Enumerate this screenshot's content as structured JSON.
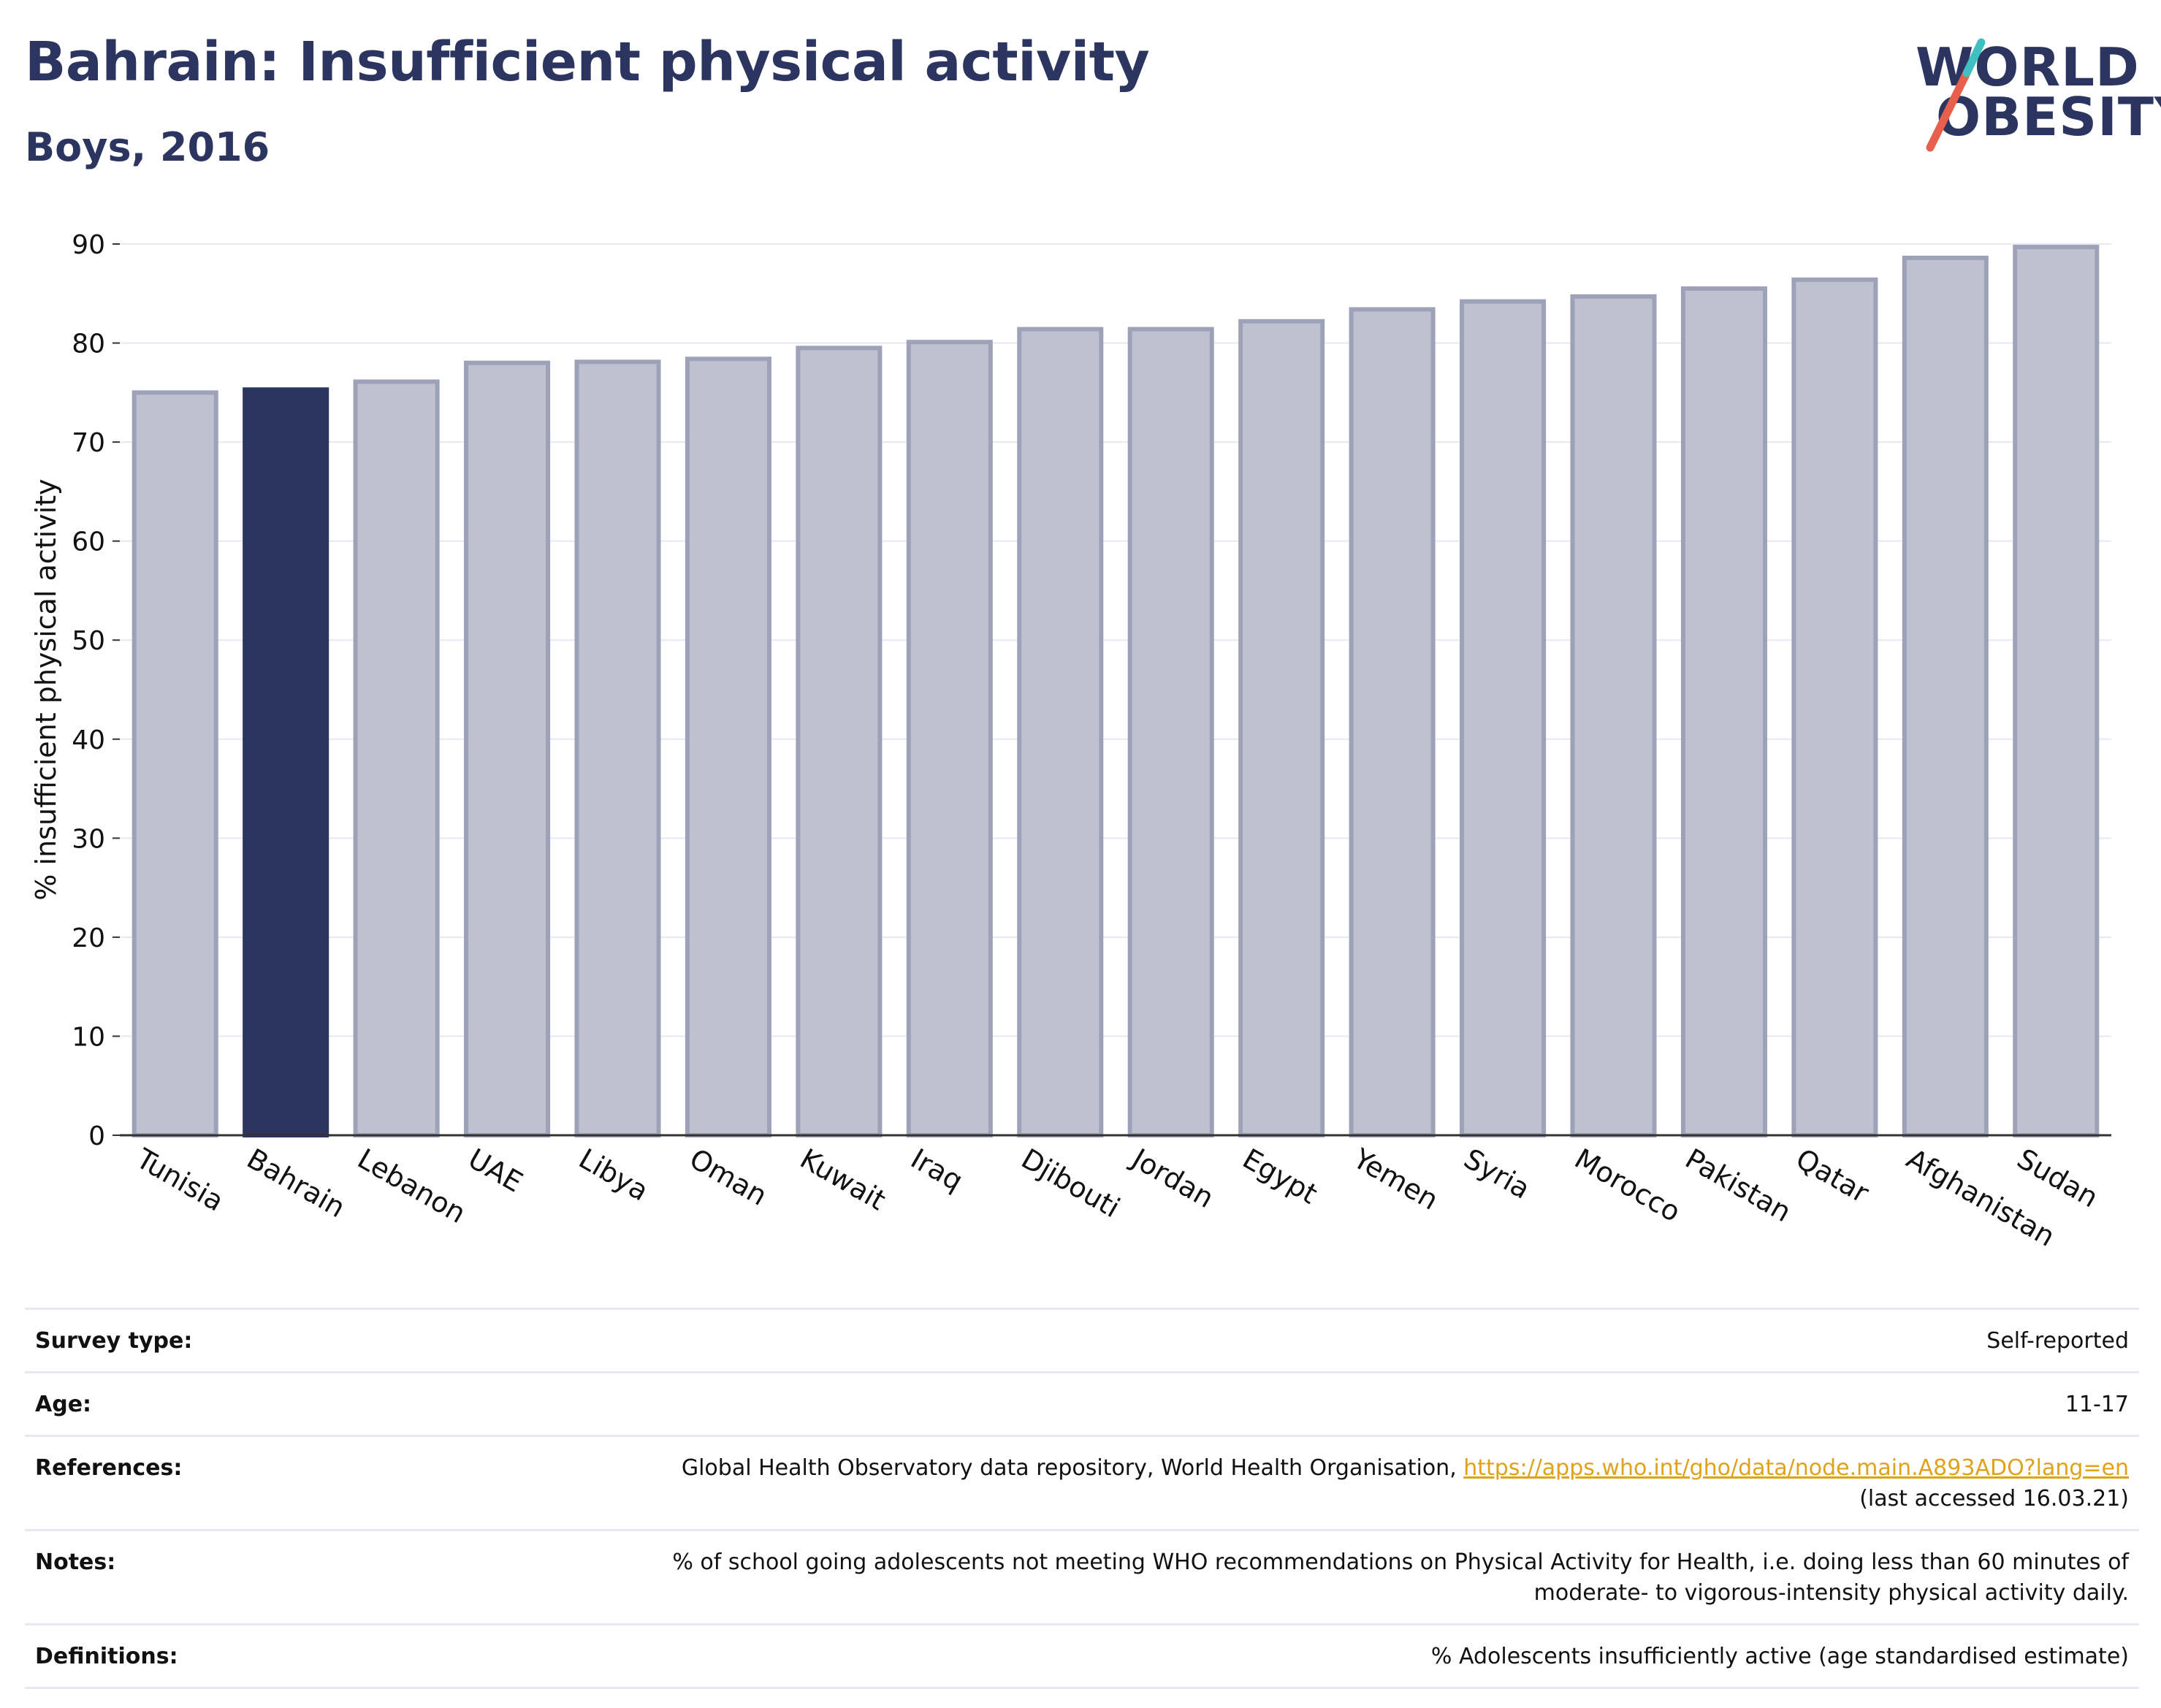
{
  "header": {
    "title": "Bahrain: Insufficient physical activity",
    "subtitle": "Boys, 2016"
  },
  "logo": {
    "line1": "WORLD",
    "line2": "OBESITY",
    "slash_colors": [
      "#e8604c",
      "#3fbfbf"
    ]
  },
  "colors": {
    "highlight": "#2b3560",
    "bar_fill": "#bfc1d0",
    "bar_stroke": "#9ea2b8",
    "grid": "#e6e9f2",
    "axis": "#333333",
    "link": "#e0a21b"
  },
  "chart_data": {
    "type": "bar",
    "title": "Bahrain: Insufficient physical activity",
    "subtitle": "Boys, 2016",
    "xlabel": "",
    "ylabel": "% insufficient physical activity",
    "ylim": [
      0,
      90
    ],
    "yticks": [
      0,
      10,
      20,
      30,
      40,
      50,
      60,
      70,
      80,
      90
    ],
    "grid": true,
    "highlight_category": "Bahrain",
    "categories": [
      "Tunisia",
      "Bahrain",
      "Lebanon",
      "UAE",
      "Libya",
      "Oman",
      "Kuwait",
      "Iraq",
      "Djibouti",
      "Jordan",
      "Egypt",
      "Yemen",
      "Syria",
      "Morocco",
      "Pakistan",
      "Qatar",
      "Afghanistan",
      "Sudan"
    ],
    "values": [
      75.0,
      75.3,
      76.1,
      78.0,
      78.1,
      78.4,
      79.5,
      80.1,
      81.4,
      81.4,
      82.2,
      83.4,
      84.2,
      84.7,
      85.5,
      86.4,
      88.6,
      89.7
    ]
  },
  "info": {
    "survey_type_label": "Survey type:",
    "survey_type_value": "Self-reported",
    "age_label": "Age:",
    "age_value": "11-17",
    "references_label": "References:",
    "references_text": "Global Health Observatory data repository, World Health Organisation, ",
    "references_link": "https://apps.who.int/gho/data/node.main.A893ADO?lang=en",
    "references_accessed": "(last accessed 16.03.21)",
    "notes_label": "Notes:",
    "notes_line1": "% of school going adolescents not meeting WHO recommendations on Physical Activity for Health, i.e. doing less than 60 minutes of",
    "notes_line2": "moderate- to vigorous-intensity physical activity daily.",
    "definitions_label": "Definitions:",
    "definitions_value": "% Adolescents insufficiently active (age standardised estimate)"
  }
}
